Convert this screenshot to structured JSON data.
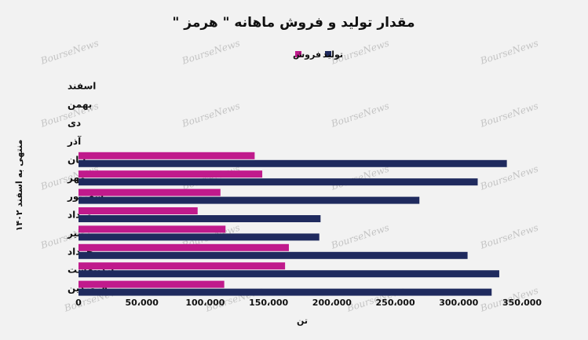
{
  "watermark": "BourseNews",
  "chart_data": {
    "type": "bar",
    "orientation": "horizontal",
    "title": "مقدار تولید و فروش ماهانه \" هرمز \"",
    "xlabel": "تن",
    "ylabel": "منتهی به اسفند ۱۴۰۲",
    "categories": [
      "فروردین",
      "اردیبهشت",
      "خرداد",
      "تیر",
      "مرداد",
      "شهریور",
      "مهر",
      "آبان",
      "آذر",
      "دی",
      "بهمن",
      "اسفند"
    ],
    "series": [
      {
        "name": "تولید",
        "color": "#1f2a5e",
        "values": [
          326000,
          332000,
          307000,
          190000,
          191000,
          269000,
          315000,
          338000,
          null,
          null,
          null,
          null
        ]
      },
      {
        "name": "فروش",
        "color": "#c01a8c",
        "values": [
          115000,
          163000,
          166000,
          116000,
          94000,
          112000,
          145000,
          139000,
          null,
          null,
          null,
          null
        ]
      }
    ],
    "xlim": [
      0,
      350000
    ],
    "xticks": [
      0,
      50000,
      100000,
      150000,
      200000,
      250000,
      300000,
      350000
    ],
    "xtick_labels": [
      "0",
      "50،000",
      "100،000",
      "150،000",
      "200،000",
      "250،000",
      "300،000",
      "350،000"
    ],
    "grid": false,
    "legend_position": "top-center"
  }
}
